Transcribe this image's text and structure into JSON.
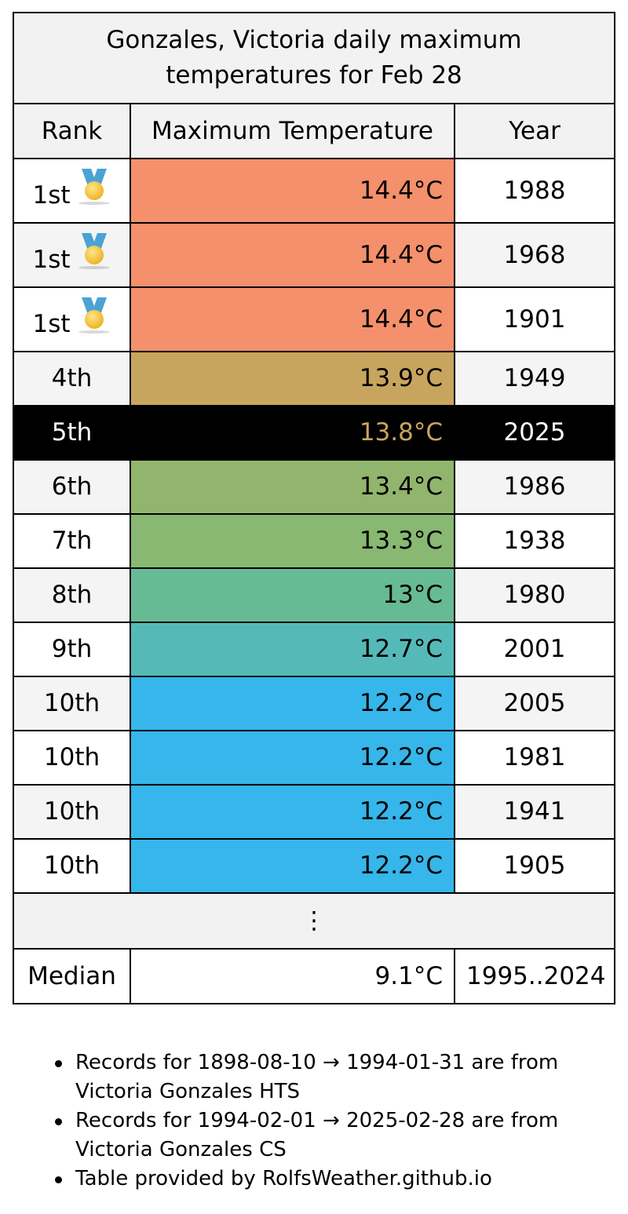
{
  "table": {
    "title": "Gonzales, Victoria daily maximum temperatures for Feb 28",
    "headers": {
      "rank": "Rank",
      "temp": "Maximum Temperature",
      "year": "Year"
    },
    "rows": [
      {
        "rank": "1st",
        "medal": "medal-icon",
        "temp": "14.4°C",
        "year": "1988",
        "color": "#f4906c"
      },
      {
        "rank": "1st",
        "medal": "medal-icon",
        "temp": "14.4°C",
        "year": "1968",
        "color": "#f4906c"
      },
      {
        "rank": "1st",
        "medal": "medal-icon",
        "temp": "14.4°C",
        "year": "1901",
        "color": "#f4906c"
      },
      {
        "rank": "4th",
        "temp": "13.9°C",
        "year": "1949",
        "color": "#c8a55e"
      },
      {
        "rank": "5th",
        "temp": "13.8°C",
        "year": "2025",
        "color": "#c8a55e",
        "current": true
      },
      {
        "rank": "6th",
        "temp": "13.4°C",
        "year": "1986",
        "color": "#92b56d"
      },
      {
        "rank": "7th",
        "temp": "13.3°C",
        "year": "1938",
        "color": "#88b872"
      },
      {
        "rank": "8th",
        "temp": "13°C",
        "year": "1980",
        "color": "#67bb94"
      },
      {
        "rank": "9th",
        "temp": "12.7°C",
        "year": "2001",
        "color": "#55bab7"
      },
      {
        "rank": "10th",
        "temp": "12.2°C",
        "year": "2005",
        "color": "#36b6ea"
      },
      {
        "rank": "10th",
        "temp": "12.2°C",
        "year": "1981",
        "color": "#36b6ea"
      },
      {
        "rank": "10th",
        "temp": "12.2°C",
        "year": "1941",
        "color": "#36b6ea"
      },
      {
        "rank": "10th",
        "temp": "12.2°C",
        "year": "1905",
        "color": "#36b6ea"
      }
    ],
    "ellipsis": "⋮",
    "median": {
      "label": "Median",
      "temp": "9.1°C",
      "years": "1995..2024"
    }
  },
  "notes": [
    "Records for 1898-08-10 → 1994-01-31 are from Victoria Gonzales HTS",
    "Records for 1994-02-01 → 2025-02-28 are from Victoria Gonzales CS",
    "Table provided by RolfsWeather.github.io"
  ]
}
